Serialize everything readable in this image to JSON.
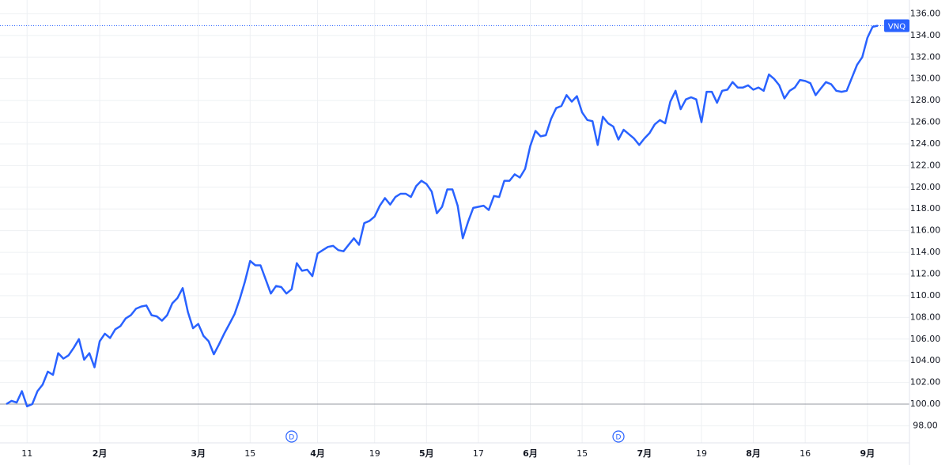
{
  "chart_data": {
    "type": "line",
    "categories": [
      null,
      null,
      null,
      null,
      "11",
      null,
      null,
      null,
      null,
      null,
      null,
      null,
      null,
      null,
      null,
      null,
      null,
      null,
      "2月",
      null,
      null,
      null,
      null,
      null,
      null,
      null,
      null,
      null,
      null,
      null,
      null,
      null,
      null,
      null,
      null,
      null,
      null,
      "3月",
      null,
      null,
      null,
      null,
      null,
      null,
      null,
      null,
      null,
      "15",
      null,
      null,
      null,
      null,
      null,
      null,
      null,
      null,
      null,
      null,
      null,
      null,
      "4月",
      null,
      null,
      null,
      null,
      null,
      null,
      null,
      null,
      null,
      null,
      "19",
      null,
      null,
      null,
      null,
      null,
      null,
      null,
      null,
      null,
      "5月",
      null,
      null,
      null,
      null,
      null,
      null,
      null,
      null,
      null,
      "17",
      null,
      null,
      null,
      null,
      null,
      null,
      null,
      null,
      null,
      "6月",
      null,
      null,
      null,
      null,
      null,
      null,
      null,
      null,
      null,
      "15",
      null,
      null,
      null,
      null,
      null,
      null,
      null,
      null,
      null,
      null,
      null,
      "7月",
      null,
      null,
      null,
      null,
      null,
      null,
      null,
      null,
      null,
      null,
      "19",
      null,
      null,
      null,
      null,
      null,
      null,
      null,
      null,
      null,
      "8月",
      null,
      null,
      null,
      null,
      null,
      null,
      null,
      null,
      null,
      "16",
      null,
      null,
      null,
      null,
      null,
      null,
      null,
      null,
      null,
      null,
      null,
      "9月",
      null,
      null
    ],
    "series": [
      {
        "name": "VNQ",
        "color": "#2962ff",
        "values": [
          100.0,
          100.3,
          100.15,
          101.2,
          99.8,
          100.0,
          101.2,
          101.8,
          103.0,
          102.7,
          104.7,
          104.2,
          104.5,
          105.2,
          106.0,
          104.1,
          104.7,
          103.4,
          105.8,
          106.5,
          106.1,
          106.9,
          107.2,
          107.9,
          108.2,
          108.8,
          109.0,
          109.1,
          108.2,
          108.1,
          107.7,
          108.2,
          109.3,
          109.8,
          110.7,
          108.5,
          107.0,
          107.4,
          106.3,
          105.8,
          104.6,
          105.5,
          106.5,
          107.4,
          108.3,
          109.7,
          111.3,
          113.2,
          112.8,
          112.8,
          111.5,
          110.2,
          110.9,
          110.8,
          110.2,
          110.6,
          113.0,
          112.3,
          112.4,
          111.8,
          113.9,
          114.2,
          114.5,
          114.6,
          114.2,
          114.1,
          114.7,
          115.3,
          114.7,
          116.7,
          116.9,
          117.3,
          118.3,
          119.0,
          118.4,
          119.1,
          119.4,
          119.4,
          119.1,
          120.1,
          120.6,
          120.3,
          119.6,
          117.6,
          118.2,
          119.8,
          119.8,
          118.3,
          115.3,
          116.8,
          118.1,
          118.2,
          118.3,
          117.9,
          119.2,
          119.1,
          120.6,
          120.6,
          121.2,
          120.9,
          121.7,
          123.8,
          125.2,
          124.7,
          124.8,
          126.3,
          127.3,
          127.5,
          128.5,
          127.9,
          128.4,
          126.9,
          126.2,
          126.1,
          123.9,
          126.5,
          125.9,
          125.6,
          124.4,
          125.3,
          124.9,
          124.5,
          123.9,
          124.5,
          125.0,
          125.8,
          126.2,
          125.9,
          127.9,
          128.9,
          127.2,
          128.1,
          128.3,
          128.1,
          126.0,
          128.8,
          128.8,
          127.8,
          128.9,
          129.0,
          129.7,
          129.2,
          129.2,
          129.4,
          129.0,
          129.2,
          128.9,
          130.4,
          130.0,
          129.4,
          128.2,
          128.9,
          129.2,
          129.9,
          129.8,
          129.6,
          128.5,
          129.1,
          129.7,
          129.5,
          128.9,
          128.8,
          128.9,
          130.1,
          131.3,
          132.0,
          133.8,
          134.8,
          134.9
        ]
      }
    ],
    "ylim": [
      96.43,
      137.27
    ],
    "yticks": [
      {
        "value": 98,
        "label": "98.00"
      },
      {
        "value": 100,
        "label": "100.00"
      },
      {
        "value": 102,
        "label": "102.00"
      },
      {
        "value": 104,
        "label": "104.00"
      },
      {
        "value": 106,
        "label": "106.00"
      },
      {
        "value": 108,
        "label": "108.00"
      },
      {
        "value": 110,
        "label": "110.00"
      },
      {
        "value": 112,
        "label": "112.00"
      },
      {
        "value": 114,
        "label": "114.00"
      },
      {
        "value": 116,
        "label": "116.00"
      },
      {
        "value": 118,
        "label": "118.00"
      },
      {
        "value": 120,
        "label": "120.00"
      },
      {
        "value": 122,
        "label": "122.00"
      },
      {
        "value": 124,
        "label": "124.00"
      },
      {
        "value": 126,
        "label": "126.00"
      },
      {
        "value": 128,
        "label": "128.00"
      },
      {
        "value": 130,
        "label": "130.00"
      },
      {
        "value": 132,
        "label": "132.00"
      },
      {
        "value": 134,
        "label": "134.00"
      },
      {
        "value": 136,
        "label": "136.00"
      }
    ],
    "grid": true,
    "baseline": 100,
    "events": [
      {
        "label": "D",
        "category_index": 55
      },
      {
        "label": "D",
        "category_index": 118
      }
    ]
  }
}
